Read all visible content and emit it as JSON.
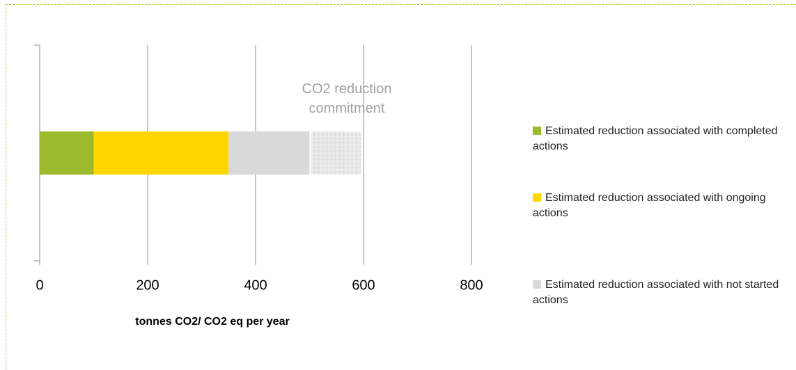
{
  "chart_data": {
    "type": "stacked_barh",
    "categories": [
      null
    ],
    "series": [
      {
        "name": "Estimated reduction associated with completed actions",
        "color": "#9bbb2c",
        "values": [
          100
        ]
      },
      {
        "name": "Estimated reduction associated with ongoing actions",
        "color": "#ffd600",
        "values": [
          250
        ]
      },
      {
        "name": "Estimated reduction associated with not started actions",
        "color": "#d9d9d9",
        "values": [
          150
        ]
      }
    ],
    "annotation": {
      "text": "CO2 reduction commitment",
      "value": 595
    },
    "xlabel": "tonnes CO2/ CO2 eq per year",
    "xlim": [
      0,
      800
    ],
    "xticks": [
      0,
      200,
      400,
      600,
      800
    ],
    "grid": true,
    "legend": "right"
  }
}
